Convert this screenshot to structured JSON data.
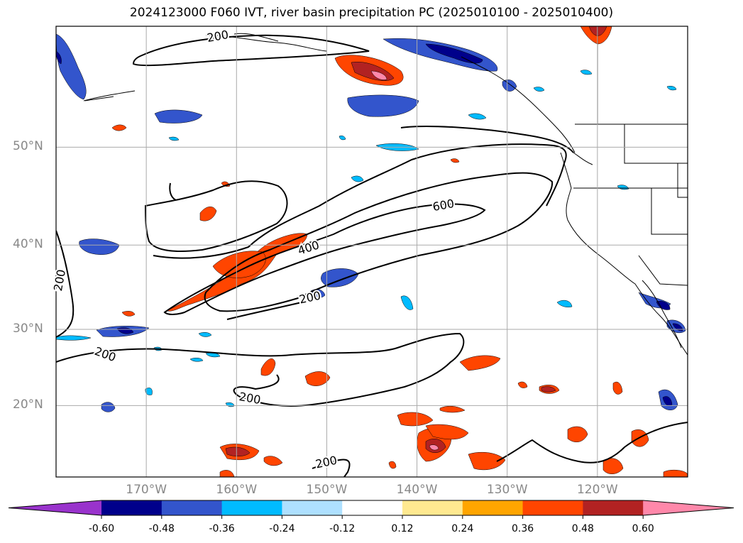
{
  "title": "2024123000 F060 IVT, river basin precipitation PC (2025010100 - 2025010400)",
  "axes": {
    "lat_ticks": [
      {
        "label": "50°N",
        "value": 50
      },
      {
        "label": "40°N",
        "value": 40
      },
      {
        "label": "30°N",
        "value": 30
      },
      {
        "label": "20°N",
        "value": 20
      }
    ],
    "lon_ticks": [
      {
        "label": "170°W",
        "value": -170
      },
      {
        "label": "160°W",
        "value": -160
      },
      {
        "label": "150°W",
        "value": -150
      },
      {
        "label": "140°W",
        "value": -140
      },
      {
        "label": "130°W",
        "value": -130
      },
      {
        "label": "120°W",
        "value": -120
      }
    ],
    "lon_range": [
      -180,
      -110
    ],
    "lat_range": [
      10,
      60
    ],
    "grid": true
  },
  "ivt_contour_labels": [
    "200",
    "200",
    "200",
    "200",
    "200",
    "200",
    "400",
    "600"
  ],
  "colorbar": {
    "levels": [
      "-0.60",
      "-0.48",
      "-0.36",
      "-0.24",
      "-0.12",
      "0.12",
      "0.24",
      "0.36",
      "0.48",
      "0.60"
    ],
    "colors": [
      "#9933cc",
      "#00008b",
      "#3355cc",
      "#00bbff",
      "#aee0ff",
      "#ffffff",
      "#ffe990",
      "#ffa500",
      "#ff4500",
      "#b22222",
      "#ff88aa"
    ],
    "extend": "both"
  }
}
